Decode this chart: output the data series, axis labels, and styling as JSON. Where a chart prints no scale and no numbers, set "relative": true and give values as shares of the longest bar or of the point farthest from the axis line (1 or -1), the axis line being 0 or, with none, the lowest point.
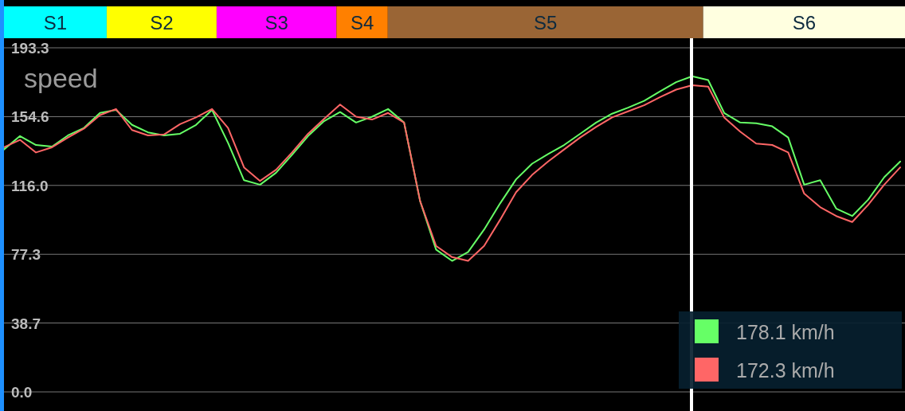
{
  "chart_data": [
    {
      "type": "bar",
      "orientation": "horizontal",
      "stacked": true,
      "relative": true,
      "categories": [
        null
      ],
      "series": [
        {
          "name": "S1",
          "color": "#00ffff",
          "values": [
            0.114
          ]
        },
        {
          "name": "S2",
          "color": "#ffff00",
          "values": [
            0.122
          ]
        },
        {
          "name": "S3",
          "color": "#ff00ff",
          "values": [
            0.133
          ]
        },
        {
          "name": "S4",
          "color": "#ff8000",
          "values": [
            0.057
          ]
        },
        {
          "name": "S5",
          "color": "#9a6535",
          "values": [
            0.35
          ]
        },
        {
          "name": "S6",
          "color": "#ffffe0",
          "values": [
            0.224
          ]
        }
      ]
    },
    {
      "type": "line",
      "ylabel": "speed",
      "categories": [
        null,
        null,
        null,
        null,
        null,
        null,
        null,
        null,
        null,
        null,
        null,
        null,
        null,
        null,
        null,
        null,
        null,
        null,
        null,
        null,
        null,
        null,
        null,
        null,
        null,
        null,
        null,
        null,
        null,
        null,
        null,
        null,
        null,
        null,
        null,
        null,
        null,
        null,
        null,
        null,
        null,
        null,
        null,
        null,
        null,
        null,
        null,
        null,
        null,
        null,
        null,
        null,
        null,
        null,
        null,
        null,
        null
      ],
      "series": [
        {
          "name": "178.1 km/h",
          "color": "#66ff66",
          "values": [
            136.2,
            143.7,
            138.7,
            137.8,
            144.1,
            148.3,
            156.7,
            158.4,
            150.0,
            145.8,
            144.1,
            145.0,
            150.0,
            158.4,
            139.9,
            118.9,
            116.4,
            123.1,
            133.2,
            143.7,
            152.1,
            157.2,
            151.3,
            154.6,
            158.9,
            151.3,
            107.2,
            79.9,
            73.6,
            78.6,
            91.2,
            105.9,
            119.4,
            128.2,
            133.6,
            138.7,
            145.0,
            151.3,
            156.3,
            159.7,
            163.5,
            168.9,
            174.0,
            177.3,
            175.2,
            156.7,
            151.3,
            150.9,
            149.2,
            142.9,
            116.4,
            118.9,
            103.0,
            98.8,
            108.0,
            120.6,
            129.4
          ]
        },
        {
          "name": "172.3 km/h",
          "color": "#ff6666",
          "values": [
            137.4,
            141.6,
            134.5,
            137.4,
            142.9,
            147.9,
            155.5,
            158.9,
            147.1,
            144.1,
            144.6,
            150.4,
            154.2,
            158.9,
            148.3,
            126.1,
            118.5,
            124.8,
            134.5,
            145.0,
            153.4,
            161.4,
            154.6,
            153.0,
            156.7,
            151.3,
            107.2,
            82.0,
            75.7,
            73.6,
            82.0,
            96.7,
            112.2,
            121.9,
            129.4,
            136.2,
            142.9,
            148.8,
            154.2,
            157.6,
            161.0,
            165.6,
            169.8,
            172.3,
            171.5,
            154.2,
            146.2,
            139.5,
            138.7,
            134.5,
            111.4,
            103.8,
            98.8,
            95.4,
            105.1,
            116.4,
            126.1
          ]
        }
      ],
      "ylim": [
        0,
        193.3
      ],
      "yticks": [
        {
          "value": 0,
          "label": "0.0"
        },
        38.7,
        77.3,
        {
          "value": 116,
          "label": "116.0"
        },
        154.6,
        193.3
      ],
      "grid": "y",
      "tick_labels": "y",
      "legend": "bottom right"
    }
  ]
}
